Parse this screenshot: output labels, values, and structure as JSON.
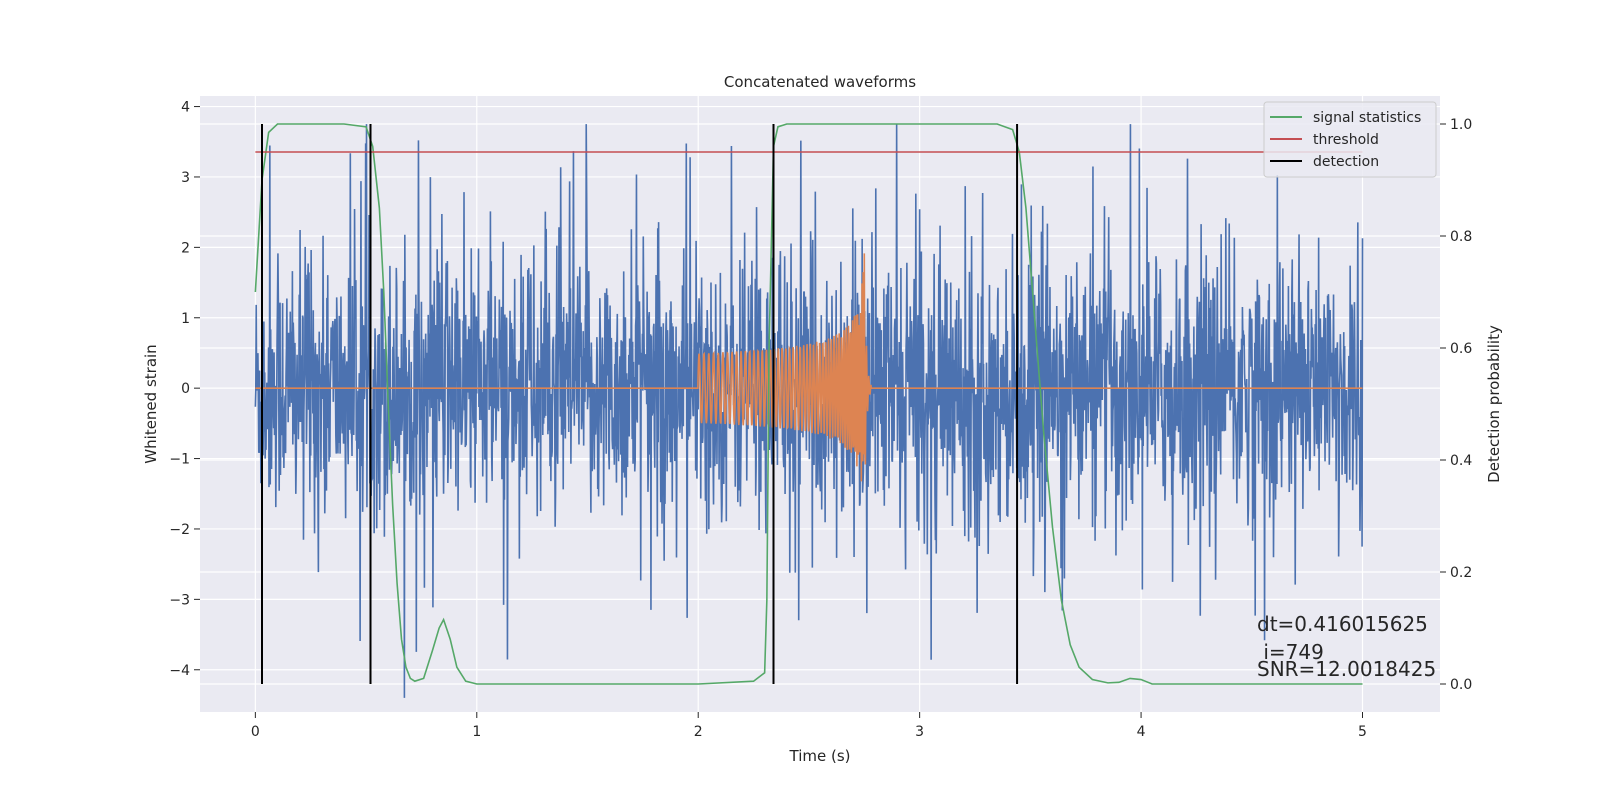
{
  "chart_data": {
    "type": "line",
    "title": "Concatenated waveforms",
    "xlabel": "Time (s)",
    "ylabel": "Whitened strain",
    "y2label": "Detection probability",
    "xlim": [
      -0.25,
      5.35
    ],
    "ylim": [
      -4.6,
      4.15
    ],
    "y2lim": [
      -0.05,
      1.05
    ],
    "x_ticks": [
      0,
      1,
      2,
      3,
      4,
      5
    ],
    "y_ticks": [
      -4,
      -3,
      -2,
      -1,
      0,
      1,
      2,
      3,
      4
    ],
    "y2_ticks": [
      0.0,
      0.2,
      0.4,
      0.6,
      0.8,
      1.0
    ],
    "x_tick_labels": [
      "0",
      "1",
      "2",
      "3",
      "4",
      "5"
    ],
    "y_tick_labels": [
      "−4",
      "−3",
      "−2",
      "−1",
      "0",
      "1",
      "2",
      "3",
      "4"
    ],
    "y2_tick_labels": [
      "0.0",
      "0.2",
      "0.4",
      "0.6",
      "0.8",
      "1.0"
    ],
    "grid": true,
    "legend_position": "top-right",
    "series": [
      {
        "name": "",
        "role": "whitened strain noise",
        "axis": "left",
        "color": "#4c72b0",
        "x_range": [
          0,
          5
        ],
        "typical_amplitude": [
          -2.5,
          2.5
        ],
        "max_spike": 3.75,
        "min_spike": -4.4
      },
      {
        "name": "",
        "role": "injected waveform",
        "axis": "left",
        "color": "#dd8452",
        "x_range": [
          0,
          5
        ],
        "chirp": {
          "start": 2.0,
          "merger": 2.75,
          "end": 3.0,
          "start_amplitude": 0.3,
          "peak_amplitude": 2.0,
          "peak_min": -1.5
        }
      },
      {
        "name": "signal statistics",
        "axis": "right",
        "color": "#55a868",
        "x": [
          0,
          0.03,
          0.06,
          0.1,
          0.2,
          0.4,
          0.5,
          0.53,
          0.56,
          0.58,
          0.6,
          0.62,
          0.64,
          0.66,
          0.68,
          0.7,
          0.72,
          0.76,
          0.8,
          0.83,
          0.85,
          0.88,
          0.91,
          0.95,
          1.0,
          1.5,
          2.0,
          2.25,
          2.3,
          2.31,
          2.32,
          2.34,
          2.36,
          2.4,
          2.5,
          3.0,
          3.35,
          3.42,
          3.45,
          3.48,
          3.52,
          3.56,
          3.6,
          3.64,
          3.68,
          3.72,
          3.78,
          3.85,
          3.9,
          3.95,
          4.0,
          4.05,
          4.5,
          5.0
        ],
        "y": [
          0.7,
          0.9,
          0.985,
          1.0,
          1.0,
          1.0,
          0.995,
          0.96,
          0.85,
          0.7,
          0.5,
          0.32,
          0.18,
          0.08,
          0.03,
          0.01,
          0.005,
          0.01,
          0.06,
          0.1,
          0.115,
          0.08,
          0.03,
          0.005,
          0.0,
          0.0,
          0.0,
          0.005,
          0.02,
          0.15,
          0.6,
          0.96,
          0.995,
          1.0,
          1.0,
          1.0,
          1.0,
          0.99,
          0.95,
          0.85,
          0.65,
          0.45,
          0.28,
          0.15,
          0.07,
          0.03,
          0.008,
          0.002,
          0.003,
          0.01,
          0.008,
          0.0,
          0.0,
          0.0
        ]
      },
      {
        "name": "threshold",
        "axis": "right",
        "color": "#c44e52",
        "x": [
          0,
          5
        ],
        "y": [
          0.95,
          0.95
        ]
      },
      {
        "name": "detection",
        "axis": "right",
        "color": "#000000",
        "x": [
          0.03,
          0.52,
          2.34,
          3.44
        ],
        "y_range": [
          0.0,
          1.0
        ]
      }
    ],
    "annotations": {
      "dt": "dt=0.416015625",
      "i": " i=749",
      "snr": "SNR=12.0018425"
    }
  }
}
